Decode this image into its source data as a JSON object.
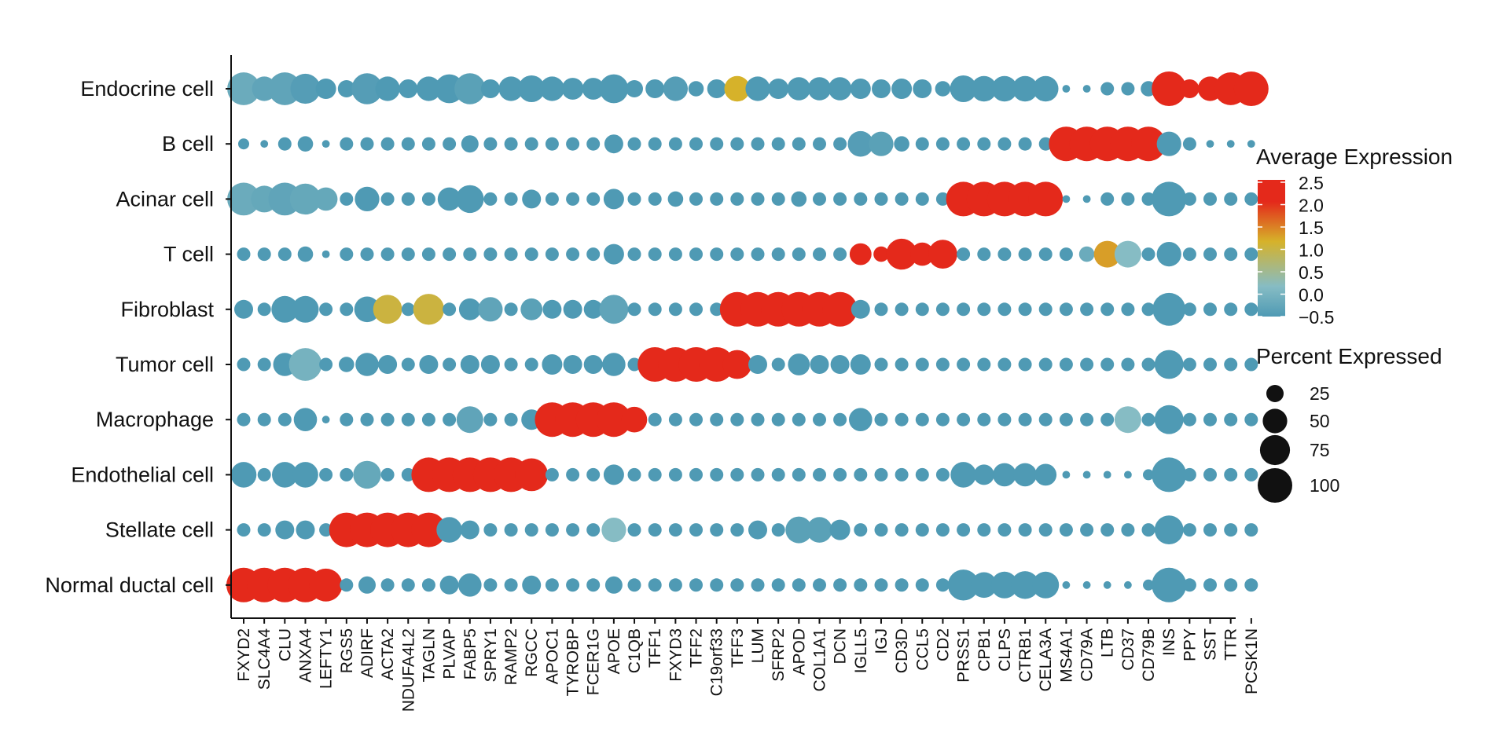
{
  "chart_data": {
    "type": "dotplot",
    "title": "",
    "xlabel": "",
    "ylabel": "",
    "rows": [
      "Endocrine cell",
      "B cell",
      "Acinar cell",
      "T cell",
      "Fibroblast",
      "Tumor cell",
      "Macrophage",
      "Endothelial cell",
      "Stellate cell",
      "Normal ductal cell"
    ],
    "genes": [
      "FXYD2",
      "SLC4A4",
      "CLU",
      "ANXA4",
      "LEFTY1",
      "RGS5",
      "ADIRF",
      "ACTA2",
      "NDUFA4L2",
      "TAGLN",
      "PLVAP",
      "FABP5",
      "SPRY1",
      "RAMP2",
      "RGCC",
      "APOC1",
      "TYROBP",
      "FCER1G",
      "APOE",
      "C1QB",
      "TFF1",
      "FXYD3",
      "TFF2",
      "C19orf33",
      "TFF3",
      "LUM",
      "SFRP2",
      "APOD",
      "COL1A1",
      "DCN",
      "IGLL5",
      "IGJ",
      "CD3D",
      "CCL5",
      "CD2",
      "PRSS1",
      "CPB1",
      "CLPS",
      "CTRB1",
      "CELA3A",
      "MS4A1",
      "CD79A",
      "LTB",
      "CD37",
      "CD79B",
      "INS",
      "PPY",
      "SST",
      "TTR",
      "PCSK1N"
    ],
    "avg_expression": [
      [
        0,
        -0.2,
        -0.2,
        -0.4,
        -0.5,
        -0.5,
        -0.4,
        -0.5,
        -0.5,
        -0.5,
        -0.5,
        -0.3,
        -0.5,
        -0.5,
        -0.5,
        -0.5,
        -0.5,
        -0.5,
        -0.5,
        -0.5,
        -0.5,
        -0.4,
        -0.5,
        -0.5,
        1.2,
        -0.5,
        -0.5,
        -0.5,
        -0.5,
        -0.5,
        -0.5,
        -0.5,
        -0.5,
        -0.5,
        -0.5,
        -0.5,
        -0.5,
        -0.5,
        -0.5,
        -0.5,
        -0.5,
        -0.5,
        -0.5,
        -0.5,
        -0.5,
        2.5,
        2.5,
        2.5,
        2.5,
        2.5
      ],
      [
        -0.5,
        -0.5,
        -0.5,
        -0.5,
        -0.5,
        -0.5,
        -0.5,
        -0.5,
        -0.5,
        -0.5,
        -0.5,
        -0.5,
        -0.5,
        -0.5,
        -0.5,
        -0.5,
        -0.5,
        -0.5,
        -0.5,
        -0.5,
        -0.5,
        -0.5,
        -0.5,
        -0.5,
        -0.5,
        -0.5,
        -0.5,
        -0.5,
        -0.5,
        -0.5,
        -0.4,
        -0.3,
        -0.5,
        -0.5,
        -0.5,
        -0.5,
        -0.5,
        -0.5,
        -0.5,
        -0.5,
        2.5,
        2.5,
        2.3,
        2.5,
        2.5,
        -0.5,
        -0.5,
        -0.5,
        -0.5,
        -0.5
      ],
      [
        0,
        -0.1,
        -0.2,
        -0.1,
        -0.1,
        -0.5,
        -0.5,
        -0.5,
        -0.5,
        -0.5,
        -0.5,
        -0.5,
        -0.5,
        -0.5,
        -0.5,
        -0.5,
        -0.5,
        -0.5,
        -0.5,
        -0.5,
        -0.5,
        -0.5,
        -0.5,
        -0.5,
        -0.5,
        -0.5,
        -0.5,
        -0.5,
        -0.5,
        -0.5,
        -0.5,
        -0.5,
        -0.5,
        -0.5,
        -0.5,
        2.5,
        2.5,
        2.5,
        2.5,
        2.5,
        -0.5,
        -0.5,
        -0.5,
        -0.5,
        -0.5,
        -0.5,
        -0.5,
        -0.5,
        -0.5,
        -0.5
      ],
      [
        -0.5,
        -0.5,
        -0.5,
        -0.5,
        -0.5,
        -0.5,
        -0.5,
        -0.5,
        -0.5,
        -0.5,
        -0.5,
        -0.5,
        -0.5,
        -0.5,
        -0.5,
        -0.5,
        -0.5,
        -0.5,
        -0.5,
        -0.5,
        -0.5,
        -0.5,
        -0.5,
        -0.5,
        -0.5,
        -0.5,
        -0.5,
        -0.5,
        -0.5,
        -0.5,
        2.5,
        2.5,
        2.5,
        2.5,
        2.5,
        -0.5,
        -0.5,
        -0.5,
        -0.5,
        -0.5,
        -0.5,
        0,
        1.3,
        0.5,
        -0.5,
        -0.5,
        -0.5,
        -0.5,
        -0.5,
        -0.5
      ],
      [
        -0.5,
        -0.5,
        -0.5,
        -0.5,
        -0.5,
        -0.5,
        -0.5,
        1.1,
        -0.5,
        1.1,
        -0.5,
        -0.5,
        -0.2,
        -0.5,
        -0.3,
        -0.5,
        -0.5,
        -0.5,
        -0.2,
        -0.5,
        -0.5,
        -0.5,
        -0.5,
        -0.5,
        2.5,
        2.5,
        2.5,
        2.5,
        2.5,
        2.5,
        -0.5,
        -0.5,
        -0.5,
        -0.5,
        -0.5,
        -0.5,
        -0.5,
        -0.5,
        -0.5,
        -0.5,
        -0.5,
        -0.5,
        -0.5,
        -0.5,
        -0.5,
        -0.5,
        -0.5,
        -0.5,
        -0.5,
        -0.5
      ],
      [
        -0.5,
        -0.5,
        -0.5,
        0.2,
        -0.5,
        -0.5,
        -0.5,
        -0.5,
        -0.5,
        -0.5,
        -0.5,
        -0.5,
        -0.5,
        -0.5,
        -0.5,
        -0.5,
        -0.5,
        -0.5,
        -0.5,
        -0.5,
        2.5,
        2.5,
        2.5,
        2.5,
        2.3,
        -0.5,
        -0.5,
        -0.5,
        -0.5,
        -0.5,
        -0.5,
        -0.5,
        -0.5,
        -0.5,
        -0.5,
        -0.5,
        -0.5,
        -0.5,
        -0.5,
        -0.5,
        -0.5,
        -0.5,
        -0.5,
        -0.5,
        -0.5,
        -0.5,
        -0.5,
        -0.5,
        -0.5,
        -0.5
      ],
      [
        -0.5,
        -0.5,
        -0.5,
        -0.5,
        -0.5,
        -0.5,
        -0.5,
        -0.5,
        -0.5,
        -0.5,
        -0.5,
        -0.2,
        -0.5,
        -0.5,
        -0.5,
        2.5,
        2.5,
        2.5,
        2.5,
        2.5,
        -0.5,
        -0.5,
        -0.5,
        -0.5,
        -0.5,
        -0.5,
        -0.5,
        -0.5,
        -0.5,
        -0.5,
        -0.5,
        -0.5,
        -0.5,
        -0.5,
        -0.5,
        -0.5,
        -0.5,
        -0.5,
        -0.5,
        -0.5,
        -0.5,
        -0.5,
        -0.5,
        0.5,
        -0.5,
        -0.5,
        -0.5,
        -0.5,
        -0.5,
        -0.5
      ],
      [
        -0.5,
        -0.5,
        -0.5,
        -0.5,
        -0.5,
        -0.5,
        -0.1,
        -0.5,
        -0.5,
        2.5,
        2.5,
        2.5,
        2.5,
        2.5,
        2.5,
        -0.5,
        -0.5,
        -0.5,
        -0.5,
        -0.5,
        -0.5,
        -0.5,
        -0.5,
        -0.5,
        -0.5,
        -0.5,
        -0.5,
        -0.5,
        -0.5,
        -0.5,
        -0.5,
        -0.5,
        -0.5,
        -0.5,
        -0.5,
        -0.5,
        -0.5,
        -0.5,
        -0.5,
        -0.5,
        -0.5,
        -0.5,
        -0.5,
        -0.5,
        -0.5,
        -0.5,
        -0.5,
        -0.5,
        -0.5,
        -0.5
      ],
      [
        -0.5,
        -0.5,
        -0.5,
        -0.5,
        -0.5,
        2.5,
        2.5,
        2.5,
        2.5,
        2.5,
        -0.5,
        -0.5,
        -0.5,
        -0.5,
        -0.5,
        -0.5,
        -0.5,
        -0.5,
        0.5,
        -0.5,
        -0.5,
        -0.5,
        -0.5,
        -0.5,
        -0.5,
        -0.5,
        -0.5,
        -0.3,
        -0.3,
        -0.5,
        -0.5,
        -0.5,
        -0.5,
        -0.5,
        -0.5,
        -0.5,
        -0.5,
        -0.5,
        -0.5,
        -0.5,
        -0.5,
        -0.5,
        -0.5,
        -0.5,
        -0.5,
        -0.5,
        -0.5,
        -0.5,
        -0.5,
        -0.5
      ],
      [
        2.5,
        2.5,
        2.5,
        2.5,
        2.5,
        -0.5,
        -0.5,
        -0.5,
        -0.5,
        -0.5,
        -0.5,
        -0.5,
        -0.5,
        -0.5,
        -0.5,
        -0.5,
        -0.5,
        -0.5,
        -0.5,
        -0.5,
        -0.5,
        -0.5,
        -0.5,
        -0.5,
        -0.5,
        -0.5,
        -0.5,
        -0.5,
        -0.5,
        -0.5,
        -0.5,
        -0.5,
        -0.5,
        -0.5,
        -0.5,
        -0.5,
        -0.5,
        -0.5,
        -0.5,
        -0.5,
        -0.5,
        -0.5,
        -0.5,
        -0.5,
        -0.5,
        -0.5,
        -0.5,
        -0.5,
        -0.5,
        -0.5
      ]
    ],
    "pct_expressed": [
      [
        90,
        50,
        90,
        75,
        35,
        25,
        80,
        50,
        30,
        50,
        70,
        80,
        30,
        50,
        60,
        50,
        40,
        40,
        70,
        25,
        30,
        50,
        20,
        30,
        55,
        50,
        35,
        45,
        45,
        45,
        35,
        30,
        35,
        30,
        20,
        60,
        55,
        55,
        55,
        55,
        5,
        5,
        15,
        15,
        20,
        100,
        30,
        50,
        90,
        100
      ],
      [
        10,
        5,
        15,
        20,
        5,
        15,
        15,
        15,
        15,
        15,
        15,
        25,
        15,
        15,
        15,
        15,
        15,
        15,
        30,
        15,
        15,
        15,
        15,
        15,
        15,
        15,
        15,
        15,
        15,
        15,
        55,
        50,
        20,
        15,
        15,
        15,
        15,
        15,
        15,
        15,
        100,
        100,
        100,
        100,
        100,
        50,
        15,
        5,
        5,
        5
      ],
      [
        90,
        60,
        90,
        80,
        45,
        15,
        50,
        15,
        15,
        15,
        45,
        65,
        15,
        15,
        30,
        15,
        15,
        15,
        35,
        15,
        15,
        20,
        15,
        15,
        15,
        15,
        15,
        20,
        15,
        15,
        15,
        15,
        15,
        15,
        15,
        100,
        100,
        100,
        100,
        100,
        5,
        5,
        15,
        15,
        15,
        100,
        15,
        15,
        15,
        15
      ],
      [
        15,
        15,
        15,
        20,
        5,
        15,
        15,
        15,
        15,
        15,
        15,
        15,
        15,
        15,
        15,
        15,
        15,
        15,
        35,
        15,
        15,
        15,
        15,
        15,
        15,
        15,
        15,
        15,
        15,
        15,
        40,
        20,
        80,
        45,
        70,
        15,
        15,
        15,
        15,
        15,
        15,
        20,
        60,
        60,
        15,
        50,
        15,
        15,
        15,
        15
      ],
      [
        30,
        15,
        60,
        60,
        15,
        15,
        55,
        70,
        15,
        80,
        15,
        40,
        50,
        15,
        40,
        30,
        30,
        30,
        70,
        15,
        15,
        15,
        15,
        15,
        100,
        100,
        100,
        100,
        100,
        100,
        30,
        15,
        15,
        15,
        15,
        15,
        15,
        15,
        15,
        15,
        15,
        15,
        15,
        15,
        15,
        90,
        15,
        15,
        15,
        15
      ],
      [
        15,
        15,
        45,
        90,
        15,
        20,
        45,
        30,
        15,
        30,
        15,
        30,
        30,
        15,
        15,
        35,
        30,
        30,
        45,
        15,
        100,
        100,
        100,
        100,
        70,
        30,
        15,
        40,
        30,
        30,
        35,
        15,
        15,
        15,
        15,
        15,
        15,
        15,
        15,
        15,
        15,
        15,
        15,
        15,
        15,
        70,
        15,
        15,
        15,
        15
      ],
      [
        15,
        15,
        15,
        45,
        5,
        15,
        15,
        15,
        15,
        15,
        15,
        60,
        15,
        15,
        35,
        100,
        100,
        100,
        100,
        55,
        15,
        15,
        15,
        15,
        15,
        15,
        15,
        15,
        15,
        15,
        45,
        15,
        15,
        15,
        15,
        15,
        15,
        15,
        15,
        15,
        15,
        15,
        15,
        60,
        15,
        70,
        15,
        15,
        15,
        15
      ],
      [
        55,
        15,
        55,
        55,
        15,
        15,
        65,
        15,
        15,
        100,
        100,
        100,
        100,
        100,
        90,
        15,
        15,
        15,
        35,
        15,
        15,
        15,
        15,
        15,
        15,
        15,
        15,
        15,
        15,
        15,
        15,
        15,
        15,
        15,
        15,
        55,
        35,
        45,
        45,
        40,
        5,
        5,
        5,
        5,
        10,
        100,
        15,
        15,
        15,
        15
      ],
      [
        15,
        15,
        30,
        30,
        15,
        100,
        100,
        100,
        100,
        100,
        55,
        30,
        15,
        15,
        15,
        15,
        15,
        15,
        50,
        15,
        15,
        15,
        15,
        15,
        15,
        30,
        15,
        60,
        55,
        35,
        15,
        15,
        15,
        15,
        15,
        15,
        15,
        15,
        15,
        15,
        15,
        15,
        15,
        15,
        15,
        70,
        15,
        15,
        15,
        15
      ],
      [
        100,
        100,
        100,
        100,
        90,
        15,
        25,
        15,
        15,
        15,
        30,
        45,
        15,
        15,
        30,
        15,
        15,
        15,
        25,
        15,
        15,
        15,
        15,
        15,
        15,
        15,
        15,
        15,
        15,
        15,
        15,
        15,
        15,
        15,
        15,
        80,
        55,
        60,
        65,
        60,
        5,
        5,
        5,
        5,
        10,
        100,
        15,
        15,
        15,
        15
      ]
    ],
    "color_legend": {
      "title": "Average Expression",
      "ticks": [
        "2.5",
        "2.0",
        "1.5",
        "1.0",
        "0.5",
        "0.0",
        "−0.5"
      ],
      "range": [
        -0.5,
        2.5
      ],
      "low_color": "#4f9ab4",
      "mid_color": "#86bcc4",
      "mid2_color": "#d6b22a",
      "high_color": "#e4291b"
    },
    "size_legend": {
      "title": "Percent Expressed",
      "labels": [
        "25",
        "50",
        "75",
        "100"
      ],
      "values": [
        25,
        50,
        75,
        100
      ]
    },
    "grid": false,
    "legend_position": "right"
  }
}
